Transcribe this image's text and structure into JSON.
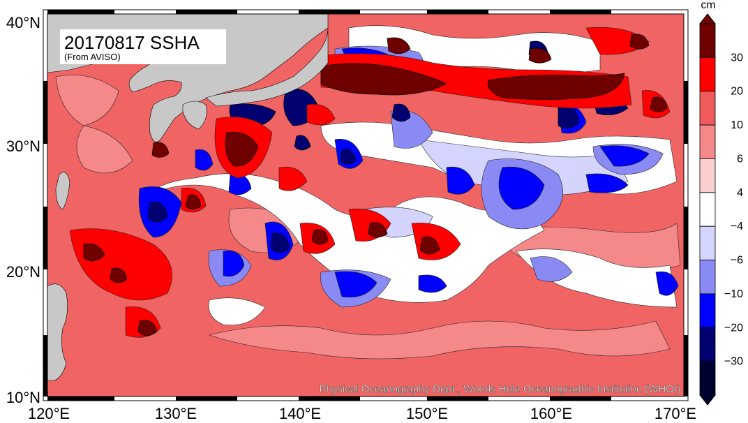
{
  "map": {
    "title": "20170817 SSHA",
    "subtitle": "(From AVISO)",
    "credit": "Physical Oceanography Dept., Woods Hole Oceanographic Institution (WHOI)",
    "x_ticks": [
      "120°E",
      "130°E",
      "140°E",
      "150°E",
      "160°E",
      "170°E"
    ],
    "y_ticks": [
      "40°N",
      "30°N",
      "20°N",
      "10°N"
    ],
    "land_color": "#c8c8c8",
    "base_color": "#f06464"
  },
  "colorbar": {
    "unit": "cm",
    "labels": [
      "30",
      "20",
      "10",
      "6",
      "4",
      "−4",
      "−6",
      "−10",
      "−20",
      "−30"
    ],
    "colors": [
      "#6e0000",
      "#ff0000",
      "#f05a5a",
      "#f58888",
      "#fbcfcf",
      "#ffffff",
      "#d4d4ff",
      "#8a8af5",
      "#0000ff",
      "#000070",
      "#000030"
    ]
  }
}
